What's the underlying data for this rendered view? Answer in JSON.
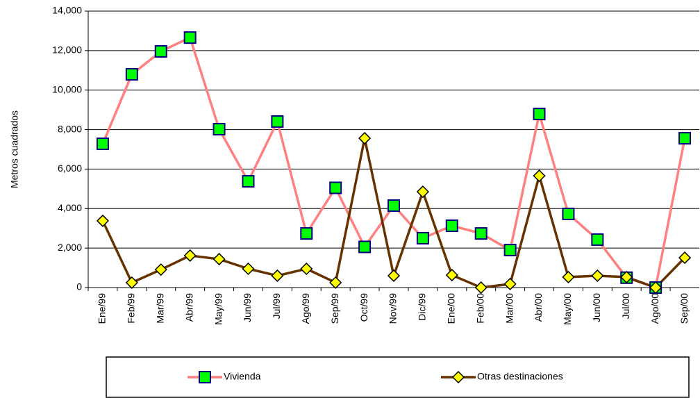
{
  "chart_data": {
    "type": "line",
    "y_label": "Metros cuadrados",
    "categories": [
      "Ene/99",
      "Feb/99",
      "Mar/99",
      "Abr/99",
      "May/99",
      "Jun/99",
      "Jul/99",
      "Ago/99",
      "Sep/99",
      "Oct/99",
      "Nov/99",
      "Dic/99",
      "Ene/00",
      "Feb/00",
      "Mar/00",
      "Abr/00",
      "May/00",
      "Jun/00",
      "Jul/00",
      "Ago/00",
      "Sep/00"
    ],
    "series": [
      {
        "name": "Vivienda",
        "color": "#ff8080",
        "marker_color": "#00ff00",
        "marker_edge": "#000080",
        "marker": "square",
        "values": [
          7280,
          10800,
          11960,
          12660,
          8020,
          5380,
          8410,
          2740,
          5050,
          2060,
          4150,
          2500,
          3130,
          2740,
          1900,
          8790,
          3730,
          2430,
          500,
          0,
          7560
        ]
      },
      {
        "name": "Otras destinaciones",
        "color": "#663300",
        "marker_color": "#ffff00",
        "marker_edge": "#000000",
        "marker": "diamond",
        "values": [
          3380,
          250,
          910,
          1620,
          1440,
          950,
          600,
          950,
          250,
          7560,
          600,
          4850,
          630,
          0,
          180,
          5660,
          530,
          600,
          530,
          0,
          1510
        ]
      }
    ],
    "ylim": [
      0,
      14000
    ],
    "yticks": [
      0,
      {
        "value": 2000,
        "label": "2,000"
      },
      {
        "value": 4000,
        "label": "4,000"
      },
      {
        "value": 6000,
        "label": "6,000"
      },
      {
        "value": 8000,
        "label": "8,000"
      },
      {
        "value": 10000,
        "label": "10,000"
      },
      {
        "value": 12000,
        "label": "12,000"
      },
      {
        "value": 14000,
        "label": "14,000"
      }
    ],
    "grid": true
  }
}
